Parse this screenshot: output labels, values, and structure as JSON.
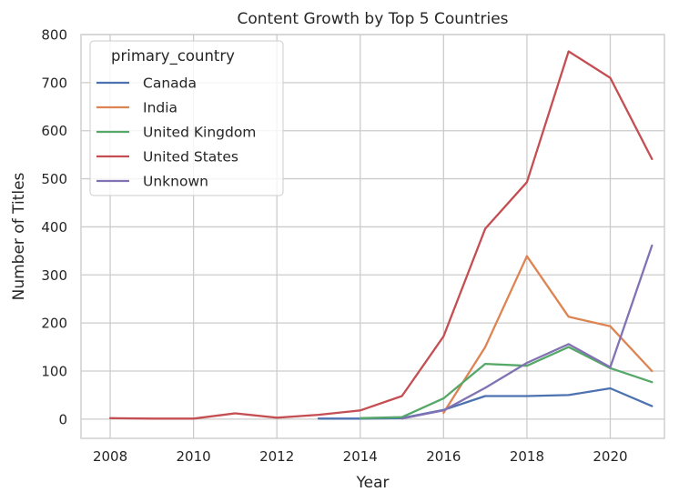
{
  "chart_data": {
    "type": "line",
    "title": "Content Growth by Top 5 Countries",
    "xlabel": "Year",
    "ylabel": "Number of Titles",
    "xlim": [
      2007.3,
      2021.3
    ],
    "ylim": [
      -40,
      800
    ],
    "xticks": [
      2008,
      2010,
      2012,
      2014,
      2016,
      2018,
      2020
    ],
    "yticks": [
      0,
      100,
      200,
      300,
      400,
      500,
      600,
      700,
      800
    ],
    "grid": true,
    "legend": {
      "title": "primary_country",
      "placement": "top-left"
    },
    "series": [
      {
        "name": "Canada",
        "color": "#4c72b0",
        "x": [
          2013,
          2014,
          2015,
          2016,
          2017,
          2018,
          2019,
          2020,
          2021
        ],
        "y": [
          1,
          1,
          2,
          19,
          48,
          48,
          50,
          64,
          27
        ]
      },
      {
        "name": "India",
        "color": "#dd8452",
        "x": [
          2016,
          2017,
          2018,
          2019,
          2020,
          2021
        ],
        "y": [
          13,
          150,
          339,
          213,
          193,
          100
        ]
      },
      {
        "name": "United Kingdom",
        "color": "#55a868",
        "x": [
          2014,
          2015,
          2016,
          2017,
          2018,
          2019,
          2020,
          2021
        ],
        "y": [
          2,
          4,
          43,
          115,
          111,
          150,
          106,
          77
        ]
      },
      {
        "name": "United States",
        "color": "#c44e52",
        "x": [
          2008,
          2009,
          2010,
          2011,
          2012,
          2013,
          2014,
          2015,
          2016,
          2017,
          2018,
          2019,
          2020,
          2021
        ],
        "y": [
          2,
          1,
          1,
          12,
          3,
          9,
          18,
          48,
          172,
          396,
          493,
          765,
          710,
          541
        ]
      },
      {
        "name": "Unknown",
        "color": "#8172b3",
        "x": [
          2015,
          2016,
          2017,
          2018,
          2019,
          2020,
          2021
        ],
        "y": [
          1,
          18,
          65,
          117,
          156,
          108,
          361
        ]
      }
    ]
  }
}
